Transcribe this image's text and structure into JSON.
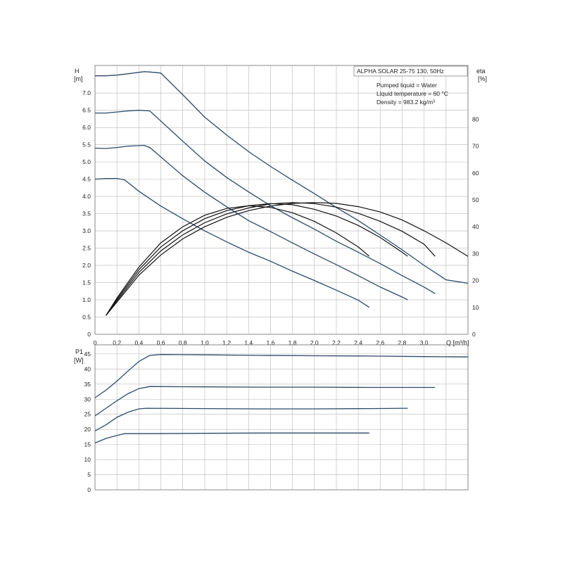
{
  "chart_data": [
    {
      "type": "line",
      "title": "ALPHA SOLAR 25-75  130, 50Hz",
      "info_lines": [
        "Pumped liquid = Water",
        "Liquid temperature = 60 °C",
        "Density = 983.2 kg/m³"
      ],
      "ylabel_name": "H",
      "ylabel_unit": "[m]",
      "y2label_name": "eta",
      "y2label_unit": "[%]",
      "xlabel": "Q [m³/h]",
      "xlim": [
        0,
        3.4
      ],
      "ylim": [
        0,
        7.8
      ],
      "y2lim": [
        0,
        100
      ],
      "x_ticks": [
        "0",
        "0.2",
        "0.4",
        "0.6",
        "0.8",
        "1.0",
        "1.2",
        "1.4",
        "1.6",
        "1.8",
        "2.0",
        "2.2",
        "2.4",
        "2.6",
        "2.8",
        "3.0"
      ],
      "y_ticks": [
        "0",
        "0.5",
        "1.0",
        "1.5",
        "2.0",
        "2.5",
        "3.0",
        "3.5",
        "4.0",
        "4.5",
        "5.0",
        "5.5",
        "6.0",
        "6.5",
        "7.0"
      ],
      "y2_ticks": [
        "0",
        "10",
        "20",
        "30",
        "40",
        "50",
        "60",
        "70",
        "80"
      ],
      "grid": true,
      "head_curves": [
        {
          "x": [
            0,
            0.1,
            0.2,
            0.3,
            0.45,
            0.5,
            0.6,
            0.8,
            1.0,
            1.2,
            1.4,
            1.6,
            1.8,
            2.0,
            2.2,
            2.4,
            2.6,
            2.8,
            3.0,
            3.2,
            3.4
          ],
          "y": [
            7.5,
            7.5,
            7.52,
            7.56,
            7.62,
            7.61,
            7.58,
            6.95,
            6.3,
            5.78,
            5.3,
            4.87,
            4.47,
            4.08,
            3.68,
            3.3,
            2.88,
            2.45,
            2.0,
            1.58,
            1.48
          ]
        },
        {
          "x": [
            0,
            0.1,
            0.2,
            0.3,
            0.4,
            0.5,
            0.8,
            1.0,
            1.2,
            1.4,
            1.6,
            1.8,
            2.0,
            2.2,
            2.4,
            2.6,
            2.8,
            3.0,
            3.1
          ],
          "y": [
            6.42,
            6.42,
            6.45,
            6.48,
            6.5,
            6.48,
            5.6,
            5.03,
            4.55,
            4.13,
            3.73,
            3.38,
            3.05,
            2.7,
            2.38,
            2.05,
            1.7,
            1.37,
            1.18
          ]
        },
        {
          "x": [
            0,
            0.1,
            0.2,
            0.3,
            0.45,
            0.5,
            0.8,
            1.0,
            1.2,
            1.4,
            1.6,
            1.8,
            2.0,
            2.2,
            2.4,
            2.6,
            2.8,
            2.85
          ],
          "y": [
            5.4,
            5.39,
            5.42,
            5.46,
            5.48,
            5.42,
            4.6,
            4.12,
            3.7,
            3.3,
            2.98,
            2.65,
            2.33,
            2.02,
            1.7,
            1.37,
            1.08,
            1.0
          ]
        },
        {
          "x": [
            0,
            0.1,
            0.2,
            0.27,
            0.4,
            0.6,
            0.8,
            1.0,
            1.2,
            1.4,
            1.6,
            1.8,
            2.0,
            2.2,
            2.4,
            2.5
          ],
          "y": [
            4.5,
            4.52,
            4.52,
            4.48,
            4.15,
            3.72,
            3.35,
            3.0,
            2.68,
            2.38,
            2.12,
            1.83,
            1.56,
            1.28,
            0.99,
            0.78
          ]
        }
      ],
      "efficiency_curves": [
        {
          "x": [
            0.1,
            0.2,
            0.4,
            0.6,
            0.8,
            1.0,
            1.2,
            1.4,
            1.6,
            1.8,
            2.0,
            2.2,
            2.4,
            2.6,
            2.8,
            3.0,
            3.2,
            3.4
          ],
          "y": [
            7,
            12,
            22,
            29.5,
            35.5,
            40,
            43.5,
            46,
            47.7,
            48.7,
            49,
            48.7,
            47.5,
            45.5,
            42.5,
            38.5,
            34,
            29
          ]
        },
        {
          "x": [
            0.1,
            0.2,
            0.4,
            0.6,
            0.8,
            1.0,
            1.2,
            1.4,
            1.6,
            1.8,
            2.0,
            2.2,
            2.4,
            2.6,
            2.8,
            3.0,
            3.1
          ],
          "y": [
            7,
            12.5,
            23,
            31,
            37,
            41.5,
            44.8,
            47,
            48.5,
            49,
            48.6,
            47.3,
            45,
            42,
            38.3,
            33.5,
            29
          ]
        },
        {
          "x": [
            0.1,
            0.2,
            0.4,
            0.6,
            0.8,
            1.0,
            1.2,
            1.4,
            1.6,
            1.8,
            2.0,
            2.2,
            2.4,
            2.6,
            2.8,
            2.85
          ],
          "y": [
            7,
            13,
            24,
            32.5,
            38.5,
            43,
            46,
            47.8,
            48.6,
            48.2,
            46.5,
            44,
            40.5,
            36,
            30.5,
            29
          ]
        },
        {
          "x": [
            0.1,
            0.2,
            0.4,
            0.6,
            0.8,
            1.0,
            1.2,
            1.4,
            1.6,
            1.8,
            2.0,
            2.2,
            2.4,
            2.5
          ],
          "y": [
            7,
            13.5,
            25,
            34,
            40,
            44.3,
            46.8,
            47.8,
            47.2,
            45.2,
            42,
            37.7,
            32.5,
            29
          ]
        }
      ]
    },
    {
      "type": "line",
      "ylabel_name": "P1",
      "ylabel_unit": "[W]",
      "xlim": [
        0,
        3.4
      ],
      "ylim": [
        0,
        48
      ],
      "y_ticks": [
        "0",
        "5",
        "10",
        "15",
        "20",
        "25",
        "30",
        "35",
        "40",
        "45"
      ],
      "grid": true,
      "power_curves": [
        {
          "x": [
            0,
            0.1,
            0.2,
            0.3,
            0.4,
            0.5,
            0.6,
            1.0,
            1.5,
            2.0,
            2.5,
            3.0,
            3.4
          ],
          "y": [
            30.5,
            33,
            36,
            39.3,
            42.5,
            44.5,
            44.8,
            44.7,
            44.5,
            44.4,
            44.3,
            44.1,
            44
          ]
        },
        {
          "x": [
            0,
            0.1,
            0.2,
            0.3,
            0.4,
            0.5,
            1.0,
            1.5,
            2.0,
            2.5,
            3.0,
            3.1
          ],
          "y": [
            24.5,
            27,
            29.5,
            31.8,
            33.5,
            34.2,
            34.1,
            34,
            34,
            33.9,
            33.9,
            33.9
          ]
        },
        {
          "x": [
            0,
            0.1,
            0.2,
            0.3,
            0.4,
            0.47,
            1.0,
            1.5,
            2.0,
            2.5,
            2.85
          ],
          "y": [
            19.5,
            21.5,
            24,
            25.7,
            26.8,
            27,
            26.9,
            26.8,
            26.8,
            26.9,
            27
          ]
        },
        {
          "x": [
            0,
            0.1,
            0.2,
            0.27,
            0.5,
            1.0,
            1.5,
            2.0,
            2.5
          ],
          "y": [
            15.5,
            17,
            18,
            18.6,
            18.6,
            18.7,
            18.8,
            18.8,
            18.8
          ]
        }
      ]
    }
  ],
  "colors": {
    "head": "#2c4a6b",
    "power": "#2c4a6b",
    "efficiency": "#111111",
    "grid": "#b8b8b8",
    "frame": "#888888"
  }
}
